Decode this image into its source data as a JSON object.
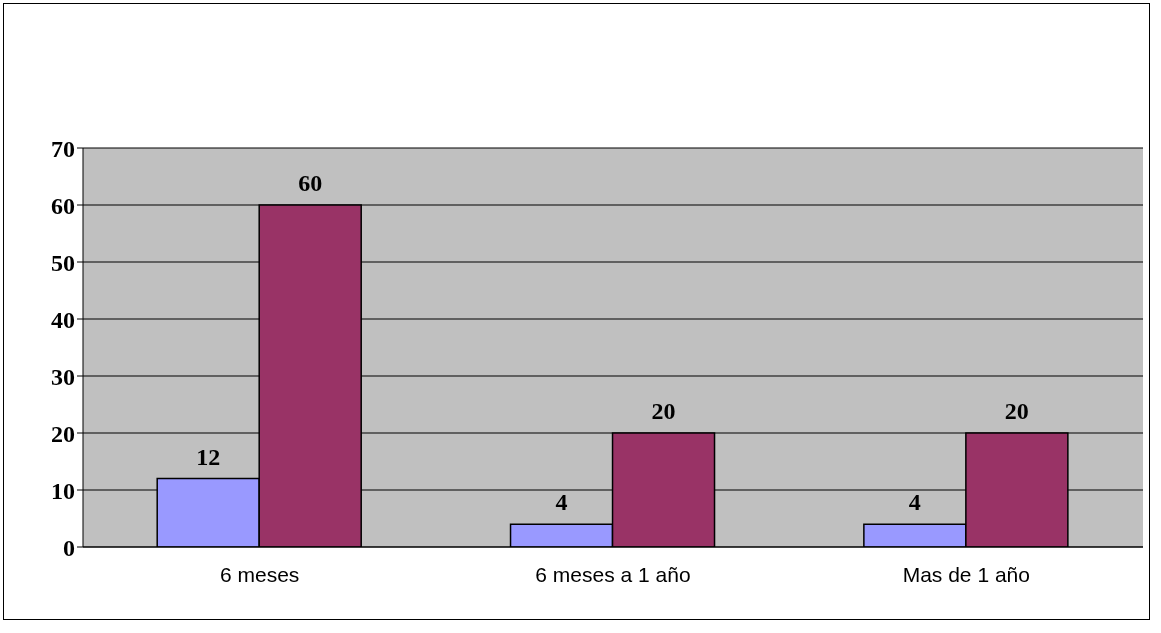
{
  "chart_data": {
    "type": "bar",
    "categories": [
      "6 meses",
      "6 meses a 1 año",
      "Mas de 1 año"
    ],
    "series": [
      {
        "color": "#9999ff",
        "values": [
          12,
          4,
          4
        ]
      },
      {
        "color": "#993366",
        "values": [
          60,
          20,
          20
        ]
      }
    ],
    "ylim": [
      0,
      70
    ],
    "yticks": [
      0,
      10,
      20,
      30,
      40,
      50,
      60,
      70
    ],
    "grid": "y",
    "data_labels": true
  }
}
